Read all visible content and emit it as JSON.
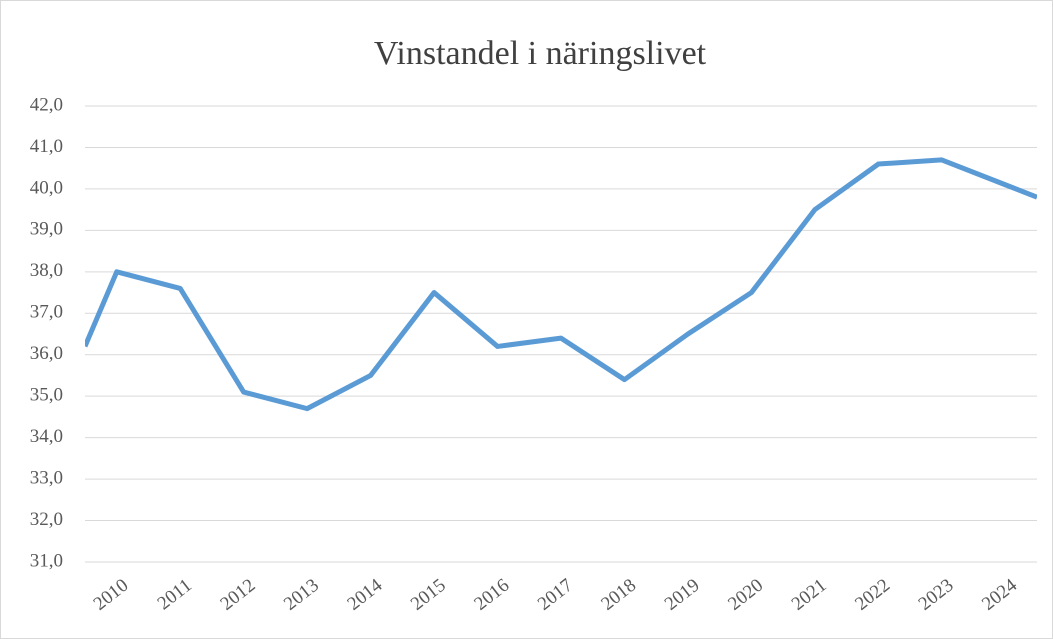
{
  "chart_data": {
    "type": "line",
    "title": "Vinstandel i näringslivet",
    "categories": [
      "2010",
      "2011",
      "2012",
      "2013",
      "2014",
      "2015",
      "2016",
      "2017",
      "2018",
      "2019",
      "2020",
      "2021",
      "2022",
      "2023",
      "2024"
    ],
    "xlim": [
      2010,
      2025
    ],
    "series": [
      {
        "color": "#5b9bd5",
        "x": [
          2010,
          2010.5,
          2011.5,
          2012.5,
          2013.5,
          2014.5,
          2015.5,
          2016.5,
          2017.5,
          2018.5,
          2019.5,
          2020.5,
          2021.5,
          2022.5,
          2023.5,
          2024.5,
          2025
        ],
        "values": [
          36.2,
          38.0,
          37.6,
          35.1,
          34.7,
          35.5,
          37.5,
          36.2,
          36.4,
          35.4,
          36.5,
          37.5,
          39.5,
          40.6,
          40.7,
          40.1,
          39.8
        ]
      }
    ],
    "ylim": [
      31,
      42
    ],
    "yticks": [
      {
        "value": 31,
        "label": "31,0"
      },
      {
        "value": 32,
        "label": "32,0"
      },
      {
        "value": 33,
        "label": "33,0"
      },
      {
        "value": 34,
        "label": "34,0"
      },
      {
        "value": 35,
        "label": "35,0"
      },
      {
        "value": 36,
        "label": "36,0"
      },
      {
        "value": 37,
        "label": "37,0"
      },
      {
        "value": 38,
        "label": "38,0"
      },
      {
        "value": 39,
        "label": "39,0"
      },
      {
        "value": 40,
        "label": "40,0"
      },
      {
        "value": 41,
        "label": "41,0"
      },
      {
        "value": 42,
        "label": "42,0"
      }
    ],
    "grid": true
  }
}
